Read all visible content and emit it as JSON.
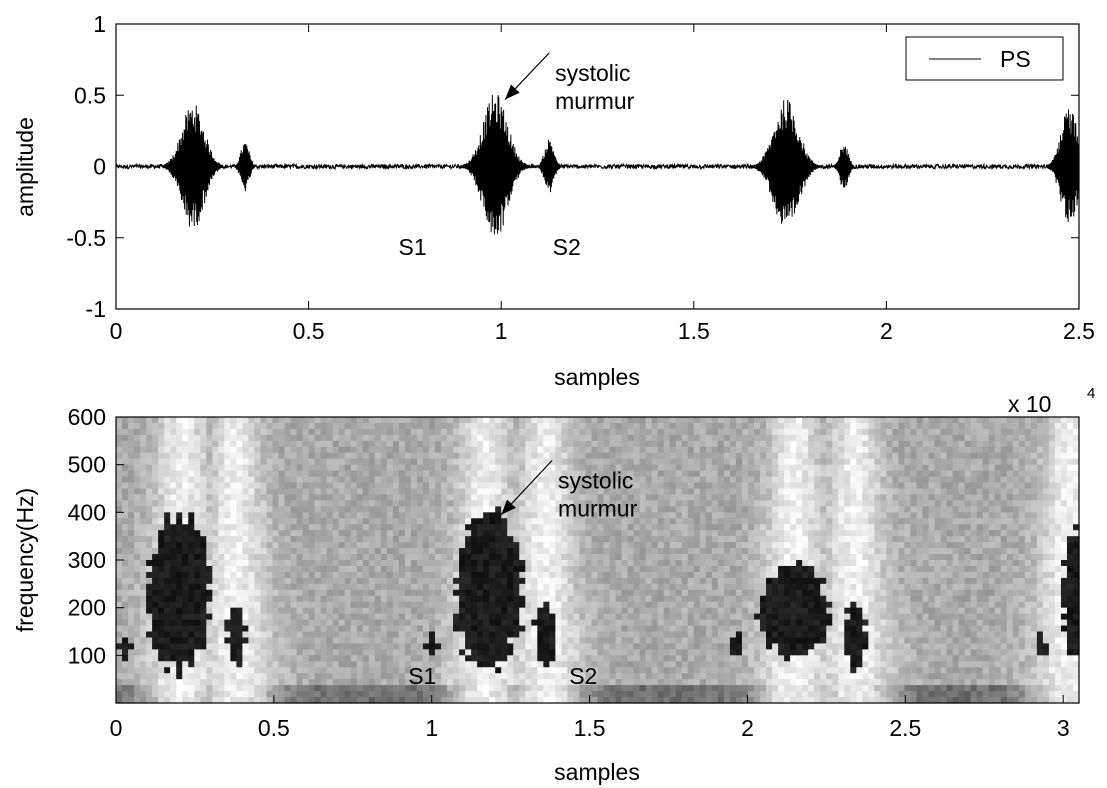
{
  "chart_data": [
    {
      "type": "line",
      "title": "",
      "xlabel": "samples",
      "ylabel": "amplitude",
      "x_multiplier": "x 10",
      "x_multiplier_exp": "4",
      "xlim": [
        0,
        25000
      ],
      "ylim": [
        -1,
        1
      ],
      "xticks": [
        0,
        5000,
        10000,
        15000,
        20000,
        25000
      ],
      "xtick_labels": [
        "0",
        "0.5",
        "1",
        "1.5",
        "2",
        "2.5"
      ],
      "yticks": [
        -1,
        -0.5,
        0,
        0.5,
        1
      ],
      "ytick_labels": [
        "-1",
        "-0.5",
        "0",
        "0.5",
        "1"
      ],
      "legend": {
        "position": "top-right",
        "entries": [
          "PS"
        ]
      },
      "series": [
        {
          "name": "PS",
          "color": "#000000",
          "bursts": [
            {
              "center": 2000,
              "width": 1200,
              "amp": 0.45
            },
            {
              "center": 3350,
              "width": 450,
              "amp": 0.18
            },
            {
              "center": 9850,
              "width": 1300,
              "amp": 0.52
            },
            {
              "center": 11250,
              "width": 500,
              "amp": 0.2
            },
            {
              "center": 17400,
              "width": 1300,
              "amp": 0.48
            },
            {
              "center": 18900,
              "width": 450,
              "amp": 0.17
            },
            {
              "center": 24750,
              "width": 900,
              "amp": 0.42
            }
          ],
          "noise_amp": 0.015
        }
      ],
      "annotations": [
        {
          "text": "S1",
          "x": 7700,
          "y": -0.62
        },
        {
          "text": "S2",
          "x": 11700,
          "y": -0.62
        },
        {
          "lines": [
            "systolic",
            "murmur"
          ],
          "x": 11400,
          "y": 0.6,
          "arrow_to": [
            10100,
            0.47
          ]
        }
      ]
    },
    {
      "type": "heatmap",
      "title": "",
      "xlabel": "samples",
      "ylabel": "frequency(Hz)",
      "xlim": [
        0,
        3.05
      ],
      "ylim": [
        0,
        600
      ],
      "xticks": [
        0,
        0.5,
        1,
        1.5,
        2,
        2.5,
        3
      ],
      "xtick_labels": [
        "0",
        "0.5",
        "1",
        "1.5",
        "2",
        "2.5",
        "3"
      ],
      "yticks": [
        100,
        200,
        300,
        400,
        500,
        600
      ],
      "ytick_labels": [
        "100",
        "200",
        "300",
        "400",
        "500",
        "600"
      ],
      "colormap": "grayscale",
      "high_energy_regions": [
        {
          "x": 0.2,
          "y": 230,
          "rx": 0.1,
          "ry": 160
        },
        {
          "x": 0.38,
          "y": 145,
          "rx": 0.03,
          "ry": 65
        },
        {
          "x": 0.03,
          "y": 120,
          "rx": 0.02,
          "ry": 25
        },
        {
          "x": 1.18,
          "y": 235,
          "rx": 0.11,
          "ry": 165
        },
        {
          "x": 1.36,
          "y": 145,
          "rx": 0.035,
          "ry": 65
        },
        {
          "x": 1.0,
          "y": 120,
          "rx": 0.02,
          "ry": 25
        },
        {
          "x": 2.15,
          "y": 195,
          "rx": 0.11,
          "ry": 100
        },
        {
          "x": 2.34,
          "y": 140,
          "rx": 0.035,
          "ry": 70
        },
        {
          "x": 1.97,
          "y": 120,
          "rx": 0.02,
          "ry": 25
        },
        {
          "x": 3.04,
          "y": 230,
          "rx": 0.04,
          "ry": 140
        },
        {
          "x": 2.93,
          "y": 120,
          "rx": 0.02,
          "ry": 25
        }
      ],
      "annotations": [
        {
          "text": "S1",
          "x": 0.97,
          "y": 40
        },
        {
          "text": "S2",
          "x": 1.48,
          "y": 40
        },
        {
          "lines": [
            "systolic",
            "murmur"
          ],
          "x": 1.4,
          "y": 450,
          "arrow_to": [
            1.22,
            395
          ]
        }
      ]
    }
  ]
}
